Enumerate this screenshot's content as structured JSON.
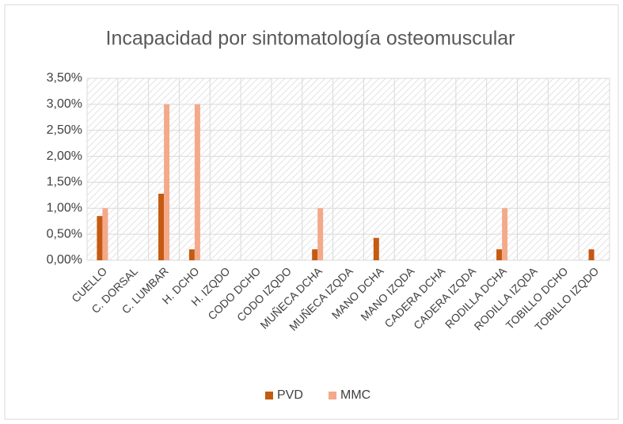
{
  "chart_data": {
    "type": "bar",
    "title": "Incapacidad por sintomatología osteomuscular",
    "categories": [
      "CUELLO",
      "C. DORSAL",
      "C. LUMBAR",
      "H. DCHO",
      "H. IZQDO",
      "CODO DCHO",
      "CODO IZQDO",
      "MUÑECA DCHA",
      "MUÑECA IZQDA",
      "MANO DCHA",
      "MANO IZQDA",
      "CADERA DCHA",
      "CADERA IZQDA",
      "RODILLA DCHA",
      "RODILLA IZQDA",
      "TOBILLO DCHO",
      "TOBILLO IZQDO"
    ],
    "series": [
      {
        "name": "PVD",
        "color": "#c55a11",
        "values": [
          0.85,
          0,
          1.28,
          0.21,
          0,
          0,
          0,
          0.21,
          0,
          0.43,
          0,
          0,
          0,
          0.21,
          0,
          0,
          0.21
        ]
      },
      {
        "name": "MMC",
        "color": "#f4a98a",
        "values": [
          1.0,
          0,
          3.0,
          3.0,
          0,
          0,
          0,
          1.0,
          0,
          0,
          0,
          0,
          0,
          1.0,
          0,
          0,
          0
        ]
      }
    ],
    "ylim": [
      0,
      3.5
    ],
    "yticks": [
      {
        "value": 0,
        "label": "0,00%"
      },
      {
        "value": 0.5,
        "label": "0,50%"
      },
      {
        "value": 1,
        "label": "1,00%"
      },
      {
        "value": 1.5,
        "label": "1,50%"
      },
      {
        "value": 2,
        "label": "2,00%"
      },
      {
        "value": 2.5,
        "label": "2,50%"
      },
      {
        "value": 3,
        "label": "3,00%"
      },
      {
        "value": 3.5,
        "label": "3,50%"
      }
    ],
    "grid": true,
    "legend": "bottom"
  }
}
